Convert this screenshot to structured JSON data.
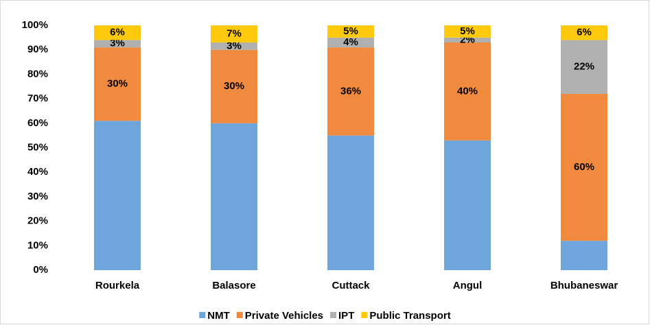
{
  "chart_data": {
    "type": "stacked_bar",
    "categories": [
      "Rourkela",
      "Balasore",
      "Cuttack",
      "Angul",
      "Bhubaneswar"
    ],
    "series": [
      {
        "name": "NMT",
        "color": "#6ea6dc",
        "values": [
          61,
          60,
          55,
          53,
          12
        ]
      },
      {
        "name": "Private Vehicles",
        "color": "#f08a3e",
        "values": [
          30,
          30,
          36,
          40,
          60
        ],
        "value_labels": [
          "30%",
          "30%",
          "36%",
          "40%",
          "60%"
        ]
      },
      {
        "name": "IPT",
        "color": "#b0b0b0",
        "values": [
          3,
          3,
          4,
          2,
          22
        ],
        "value_labels": [
          "3%",
          "3%",
          "4%",
          "2%",
          "22%"
        ]
      },
      {
        "name": "Public Transport",
        "color": "#ffc90e",
        "values": [
          6,
          7,
          5,
          5,
          6
        ],
        "value_labels": [
          "6%",
          "7%",
          "5%",
          "5%",
          "6%"
        ]
      }
    ],
    "ylim": [
      0,
      100
    ],
    "yticks": [
      {
        "value": 0,
        "label": "0%"
      },
      {
        "value": 10,
        "label": "10%"
      },
      {
        "value": 20,
        "label": "20%"
      },
      {
        "value": 30,
        "label": "30%"
      },
      {
        "value": 40,
        "label": "40%"
      },
      {
        "value": 50,
        "label": "50%"
      },
      {
        "value": 60,
        "label": "60%"
      },
      {
        "value": 70,
        "label": "70%"
      },
      {
        "value": 80,
        "label": "80%"
      },
      {
        "value": 90,
        "label": "90%"
      },
      {
        "value": 100,
        "label": "100%"
      }
    ],
    "legend": "bottom"
  }
}
